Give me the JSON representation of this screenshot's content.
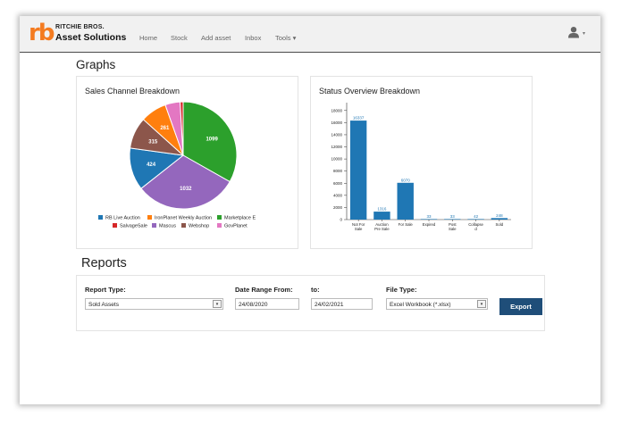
{
  "brand": {
    "logo": "rb",
    "line1": "RITCHIE BROS.",
    "line2": "Asset Solutions"
  },
  "nav": {
    "items": [
      "Home",
      "Stock",
      "Add asset",
      "Inbox",
      "Tools ▾"
    ]
  },
  "user": {
    "caret": "▾"
  },
  "graphs": {
    "title": "Graphs"
  },
  "pie": {
    "title": "Sales Channel Breakdown",
    "legend": [
      {
        "label": "RB Live Auction",
        "color": "#1f77b4"
      },
      {
        "label": "IronPlanet Weekly Auction",
        "color": "#ff7f0e"
      },
      {
        "label": "Marketplace E",
        "color": "#2ca02c"
      },
      {
        "label": "SalvageSale",
        "color": "#d62728"
      },
      {
        "label": "Mascus",
        "color": "#9467bd"
      },
      {
        "label": "Webshop",
        "color": "#8c564b"
      },
      {
        "label": "GovPlanet",
        "color": "#e377c2"
      }
    ]
  },
  "status": {
    "title": "Status Overview Breakdown"
  },
  "reports": {
    "title": "Reports",
    "report_type_label": "Report Type:",
    "report_type_value": "Sold Assets",
    "date_from_label": "Date Range From:",
    "date_from_value": "24/08/2020",
    "date_to_label": "to:",
    "date_to_value": "24/02/2021",
    "file_type_label": "File Type:",
    "file_type_value": "Excel Workbook (*.xlsx)",
    "dropdown_arrow": "▾",
    "export_label": "Export"
  },
  "chart_data": [
    {
      "type": "pie",
      "title": "Sales Channel Breakdown",
      "slices": [
        {
          "label": "Marketplace E",
          "value": 1099,
          "color": "#2ca02c"
        },
        {
          "label": "Mascus",
          "value": 1032,
          "color": "#9467bd"
        },
        {
          "label": "RB Live Auction",
          "value": 424,
          "color": "#1f77b4"
        },
        {
          "label": "Webshop",
          "value": 315,
          "color": "#8c564b"
        },
        {
          "label": "IronPlanet Weekly Auction",
          "value": 261,
          "color": "#ff7f0e"
        },
        {
          "label": "GovPlanet",
          "value": 150,
          "color": "#e377c2"
        },
        {
          "label": "SalvageSale",
          "value": 30,
          "color": "#d62728"
        }
      ],
      "data_labels": [
        "1099",
        "1032",
        "424",
        "315",
        "261",
        "",
        ""
      ]
    },
    {
      "type": "bar",
      "title": "Status Overview Breakdown",
      "categories": [
        [
          "Not For",
          "Sale"
        ],
        [
          "Auction",
          "Pre Sale"
        ],
        [
          "For Sale"
        ],
        [
          "Expired"
        ],
        [
          "Post",
          "Sale"
        ],
        [
          "Collapse",
          "d"
        ],
        [
          "Sold"
        ]
      ],
      "values": [
        16337,
        1316,
        6070,
        33,
        33,
        42,
        248
      ],
      "data_labels": [
        "16337",
        "1316",
        "6070",
        "33",
        "33",
        "42",
        "248"
      ],
      "ylim": [
        0,
        19000
      ],
      "yticks": [
        0,
        2000,
        4000,
        6000,
        8000,
        10000,
        12000,
        14000,
        16000,
        18000
      ],
      "color": "#1f77b4",
      "label_color": "#1f77b4"
    }
  ]
}
